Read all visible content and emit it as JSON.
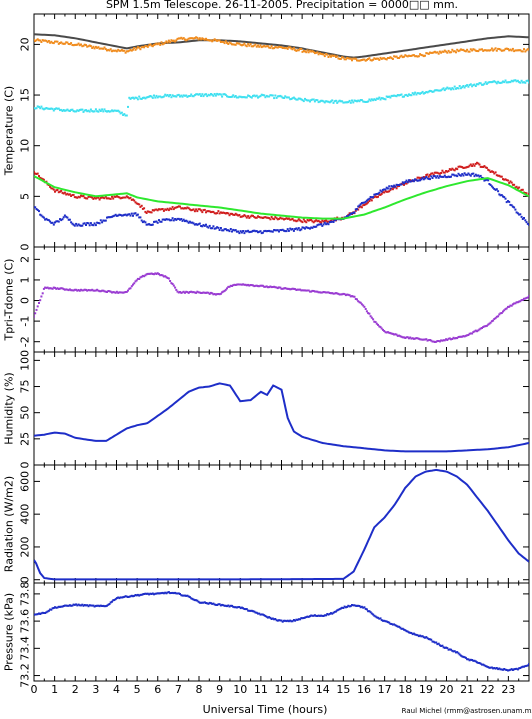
{
  "figure": {
    "title": "SPM 1.5m Telescope. 26-11-2005. Precipitation = 0000□□ mm.",
    "xlabel": "Universal Time (hours)",
    "credit": "Raul Michel (rmm@astrosen.unam.mx)"
  },
  "chart_data": [
    {
      "type": "line",
      "ylabel": "Temperature (C)",
      "xlim": [
        0,
        24
      ],
      "ylim": [
        0,
        23
      ],
      "xticks": [
        0,
        1,
        2,
        3,
        4,
        5,
        6,
        7,
        8,
        9,
        10,
        11,
        12,
        13,
        14,
        15,
        16,
        17,
        18,
        19,
        20,
        21,
        22,
        23
      ],
      "yticks": [
        0,
        5,
        10,
        15,
        20
      ],
      "series": [
        {
          "color": "#4a4a4a",
          "style": "line",
          "x": [
            0,
            1,
            2,
            3,
            4,
            4.5,
            5,
            6,
            7,
            8,
            9,
            10,
            11,
            12,
            13,
            14,
            15,
            15.5,
            16,
            17,
            18,
            19,
            20,
            21,
            22,
            23,
            24
          ],
          "y": [
            21.0,
            20.9,
            20.6,
            20.2,
            19.8,
            19.6,
            19.8,
            20.1,
            20.2,
            20.4,
            20.4,
            20.3,
            20.1,
            19.9,
            19.6,
            19.2,
            18.8,
            18.7,
            18.8,
            19.1,
            19.4,
            19.7,
            20.0,
            20.3,
            20.6,
            20.8,
            20.7
          ]
        },
        {
          "color": "#f08c1e",
          "style": "points",
          "x": [
            0,
            1,
            2,
            3,
            4,
            4.5,
            5,
            6,
            7,
            8,
            9,
            10,
            11,
            12,
            13,
            14,
            15,
            15.5,
            16,
            17,
            18,
            19,
            20,
            21,
            22,
            23,
            24
          ],
          "y": [
            20.4,
            20.2,
            20.0,
            19.7,
            19.4,
            19.3,
            19.6,
            20.0,
            20.5,
            20.6,
            20.3,
            20.0,
            19.8,
            19.7,
            19.4,
            19.0,
            18.6,
            18.5,
            18.5,
            18.6,
            18.8,
            19.0,
            19.3,
            19.4,
            19.5,
            19.5,
            19.4
          ]
        },
        {
          "color": "#40e0f0",
          "style": "points",
          "x": [
            0,
            1,
            2,
            3,
            4,
            4.5,
            4.6,
            5,
            6,
            7,
            8,
            9,
            10,
            11,
            12,
            13,
            14,
            15,
            16,
            17,
            18,
            19,
            20,
            21,
            22,
            23,
            24
          ],
          "y": [
            13.8,
            13.6,
            13.4,
            13.5,
            13.4,
            13.0,
            14.6,
            14.7,
            14.9,
            14.9,
            15.0,
            15.0,
            14.8,
            14.9,
            14.8,
            14.5,
            14.4,
            14.3,
            14.4,
            14.7,
            15.0,
            15.3,
            15.6,
            15.9,
            16.2,
            16.4,
            16.3
          ]
        },
        {
          "color": "#d01e1e",
          "style": "points",
          "x": [
            0,
            0.5,
            1,
            2,
            3,
            4,
            4.5,
            5,
            5.5,
            6,
            7,
            8,
            9,
            10,
            11,
            12,
            13,
            14,
            15,
            15.5,
            16,
            17,
            18,
            19,
            20,
            21,
            21.5,
            22,
            23,
            24
          ],
          "y": [
            7.5,
            6.5,
            5.6,
            5.0,
            4.8,
            4.9,
            5.0,
            4.4,
            3.4,
            3.6,
            3.9,
            3.6,
            3.4,
            3.1,
            2.9,
            2.8,
            2.6,
            2.5,
            2.9,
            3.4,
            4.2,
            5.4,
            6.3,
            7.0,
            7.5,
            8.0,
            8.2,
            7.7,
            6.5,
            5.1
          ]
        },
        {
          "color": "#1e2ec8",
          "style": "points",
          "x": [
            0,
            0.5,
            1,
            1.5,
            2,
            3,
            4,
            5,
            5.5,
            6,
            7,
            8,
            9,
            10,
            11,
            12,
            13,
            14,
            15,
            15.5,
            16,
            17,
            18,
            19,
            20,
            21,
            21.5,
            22,
            23,
            24
          ],
          "y": [
            4.0,
            2.8,
            2.3,
            3.0,
            2.2,
            2.3,
            3.2,
            3.2,
            2.1,
            2.5,
            2.8,
            2.2,
            1.8,
            1.5,
            1.5,
            1.6,
            1.8,
            2.2,
            2.8,
            3.4,
            4.5,
            5.7,
            6.4,
            6.8,
            7.0,
            7.2,
            7.1,
            6.5,
            4.4,
            2.2
          ]
        },
        {
          "color": "#2ee82e",
          "style": "line",
          "x": [
            0,
            1,
            2,
            3,
            4,
            4.5,
            5,
            6,
            7,
            8,
            9,
            10,
            11,
            12,
            13,
            14,
            15,
            16,
            17,
            18,
            19,
            20,
            21,
            22,
            23,
            24
          ],
          "y": [
            7.0,
            5.9,
            5.4,
            5.0,
            5.2,
            5.3,
            4.9,
            4.5,
            4.3,
            4.1,
            3.9,
            3.6,
            3.3,
            3.1,
            2.9,
            2.8,
            2.8,
            3.2,
            3.9,
            4.7,
            5.4,
            6.0,
            6.5,
            6.8,
            6.1,
            5.0
          ]
        }
      ]
    },
    {
      "type": "scatter",
      "ylabel": "Tpri-Tdome (C)",
      "xlim": [
        0,
        24
      ],
      "ylim": [
        -2.5,
        2.6
      ],
      "xticks": [
        0,
        1,
        2,
        3,
        4,
        5,
        6,
        7,
        8,
        9,
        10,
        11,
        12,
        13,
        14,
        15,
        16,
        17,
        18,
        19,
        20,
        21,
        22,
        23
      ],
      "yticks": [
        -2,
        -1,
        0,
        1,
        2
      ],
      "series": [
        {
          "color": "#9a3cd2",
          "style": "points",
          "x": [
            0,
            0.5,
            1,
            2,
            3,
            4,
            4.5,
            5,
            5.5,
            6,
            6.5,
            7,
            8,
            9,
            9.5,
            10,
            11,
            12,
            13,
            14,
            15,
            15.5,
            16,
            16.5,
            17,
            18,
            19,
            19.5,
            20,
            21,
            22,
            23,
            24
          ],
          "y": [
            -0.8,
            0.6,
            0.6,
            0.5,
            0.5,
            0.4,
            0.4,
            1.0,
            1.3,
            1.3,
            1.1,
            0.4,
            0.4,
            0.3,
            0.7,
            0.8,
            0.7,
            0.6,
            0.5,
            0.4,
            0.3,
            0.2,
            -0.3,
            -1.0,
            -1.5,
            -1.8,
            -1.9,
            -2.0,
            -1.9,
            -1.7,
            -1.2,
            -0.3,
            0.2
          ]
        }
      ]
    },
    {
      "type": "line",
      "ylabel": "Humidity (%)",
      "xlim": [
        0,
        24
      ],
      "ylim": [
        0,
        108
      ],
      "xticks": [
        0,
        1,
        2,
        3,
        4,
        5,
        6,
        7,
        8,
        9,
        10,
        11,
        12,
        13,
        14,
        15,
        16,
        17,
        18,
        19,
        20,
        21,
        22,
        23
      ],
      "yticks": [
        0,
        25,
        50,
        75,
        100
      ],
      "series": [
        {
          "color": "#1e2ec8",
          "style": "line",
          "x": [
            0,
            0.5,
            1,
            1.5,
            2,
            3,
            3.5,
            4,
            4.5,
            5,
            5.5,
            6,
            6.5,
            7,
            7.5,
            8,
            8.5,
            9,
            9.5,
            10,
            10.5,
            11,
            11.3,
            11.6,
            12,
            12.3,
            12.6,
            13,
            14,
            15,
            16,
            17,
            18,
            19,
            20,
            21,
            22,
            23,
            24
          ],
          "y": [
            28,
            29,
            31,
            30,
            26,
            23,
            23,
            29,
            35,
            38,
            40,
            47,
            54,
            62,
            70,
            74,
            75,
            78,
            76,
            61,
            62,
            70,
            67,
            76,
            72,
            45,
            32,
            27,
            21,
            18,
            16,
            14,
            13,
            13,
            13,
            14,
            15,
            17,
            21
          ]
        }
      ]
    },
    {
      "type": "line",
      "ylabel": "Radiation (W/m2)",
      "xlim": [
        0,
        24
      ],
      "ylim": [
        -20,
        700
      ],
      "xticks": [
        0,
        1,
        2,
        3,
        4,
        5,
        6,
        7,
        8,
        9,
        10,
        11,
        12,
        13,
        14,
        15,
        16,
        17,
        18,
        19,
        20,
        21,
        22,
        23
      ],
      "yticks": [
        0,
        200,
        400,
        600
      ],
      "series": [
        {
          "color": "#1e2ec8",
          "style": "line",
          "x": [
            0,
            0.1,
            0.3,
            0.5,
            1,
            5,
            10,
            15,
            15.5,
            16,
            16.5,
            17,
            17.5,
            18,
            18.5,
            19,
            19.5,
            20,
            20.5,
            21,
            21.5,
            22,
            22.5,
            23,
            23.5,
            24
          ],
          "y": [
            120,
            100,
            40,
            10,
            2,
            2,
            2,
            5,
            50,
            180,
            320,
            380,
            460,
            560,
            630,
            660,
            670,
            660,
            630,
            580,
            500,
            420,
            330,
            240,
            160,
            110
          ]
        }
      ]
    },
    {
      "type": "scatter",
      "ylabel": "Pressure (kPa)",
      "xlim": [
        0,
        24
      ],
      "ylim": [
        73.16,
        73.88
      ],
      "xticks": [
        0,
        1,
        2,
        3,
        4,
        5,
        6,
        7,
        8,
        9,
        10,
        11,
        12,
        13,
        14,
        15,
        16,
        17,
        18,
        19,
        20,
        21,
        22,
        23
      ],
      "yticks": [
        73.2,
        73.4,
        73.6,
        73.8
      ],
      "series": [
        {
          "color": "#1e2ec8",
          "style": "points",
          "x": [
            0,
            0.5,
            1,
            2,
            3,
            3.5,
            4,
            4.5,
            5,
            5.5,
            6,
            6.5,
            7,
            7.5,
            8,
            9,
            10,
            11,
            11.5,
            12,
            12.5,
            13,
            13.5,
            14,
            14.5,
            15,
            15.5,
            16,
            16.5,
            17,
            17.5,
            18,
            18.5,
            19,
            19.5,
            20,
            20.5,
            21,
            21.5,
            22,
            22.5,
            23,
            23.5,
            24
          ],
          "y": [
            73.65,
            73.66,
            73.7,
            73.72,
            73.71,
            73.71,
            73.77,
            73.78,
            73.79,
            73.8,
            73.8,
            73.81,
            73.8,
            73.78,
            73.74,
            73.72,
            73.7,
            73.65,
            73.62,
            73.6,
            73.6,
            73.62,
            73.64,
            73.64,
            73.66,
            73.7,
            73.72,
            73.7,
            73.64,
            73.6,
            73.57,
            73.53,
            73.5,
            73.48,
            73.44,
            73.4,
            73.37,
            73.32,
            73.3,
            73.26,
            73.25,
            73.24,
            73.25,
            73.28
          ]
        }
      ]
    }
  ]
}
